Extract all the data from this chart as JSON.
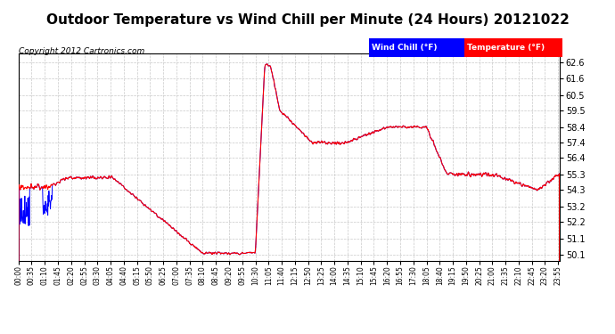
{
  "title": "Outdoor Temperature vs Wind Chill per Minute (24 Hours) 20121022",
  "copyright": "Copyright 2012 Cartronics.com",
  "yticks": [
    50.1,
    51.1,
    52.2,
    53.2,
    54.3,
    55.3,
    56.4,
    57.4,
    58.4,
    59.5,
    60.5,
    61.6,
    62.6
  ],
  "temp_color": "#ff0000",
  "wind_color": "#0000ff",
  "bg_color": "#ffffff",
  "grid_color": "#bbbbbb",
  "title_fontsize": 11,
  "copyright_fontsize": 6.5,
  "legend_wind_label": "Wind Chill (°F)",
  "legend_temp_label": "Temperature (°F)",
  "legend_wind_bg": "#0000ff",
  "legend_temp_bg": "#ff0000",
  "ylim_min": 49.7,
  "ylim_max": 63.2,
  "n_minutes": 1440,
  "xtick_step": 35
}
